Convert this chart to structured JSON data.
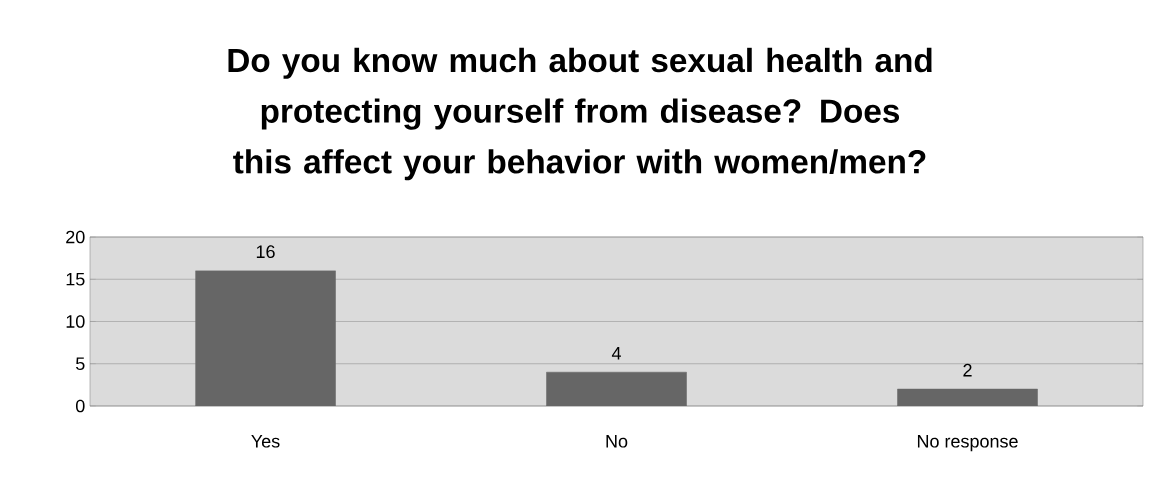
{
  "chart_data": {
    "type": "bar",
    "title": "Do you know much about sexual health and protecting yourself from disease? Does this affect your behavior with women/men?",
    "categories": [
      "Yes",
      "No",
      "No response"
    ],
    "values": [
      16,
      4,
      2
    ],
    "color": "#666666",
    "ylim": [
      0,
      20
    ],
    "yticks": [
      0,
      5,
      10,
      15,
      20
    ],
    "grid": "y",
    "data_labels": true
  }
}
